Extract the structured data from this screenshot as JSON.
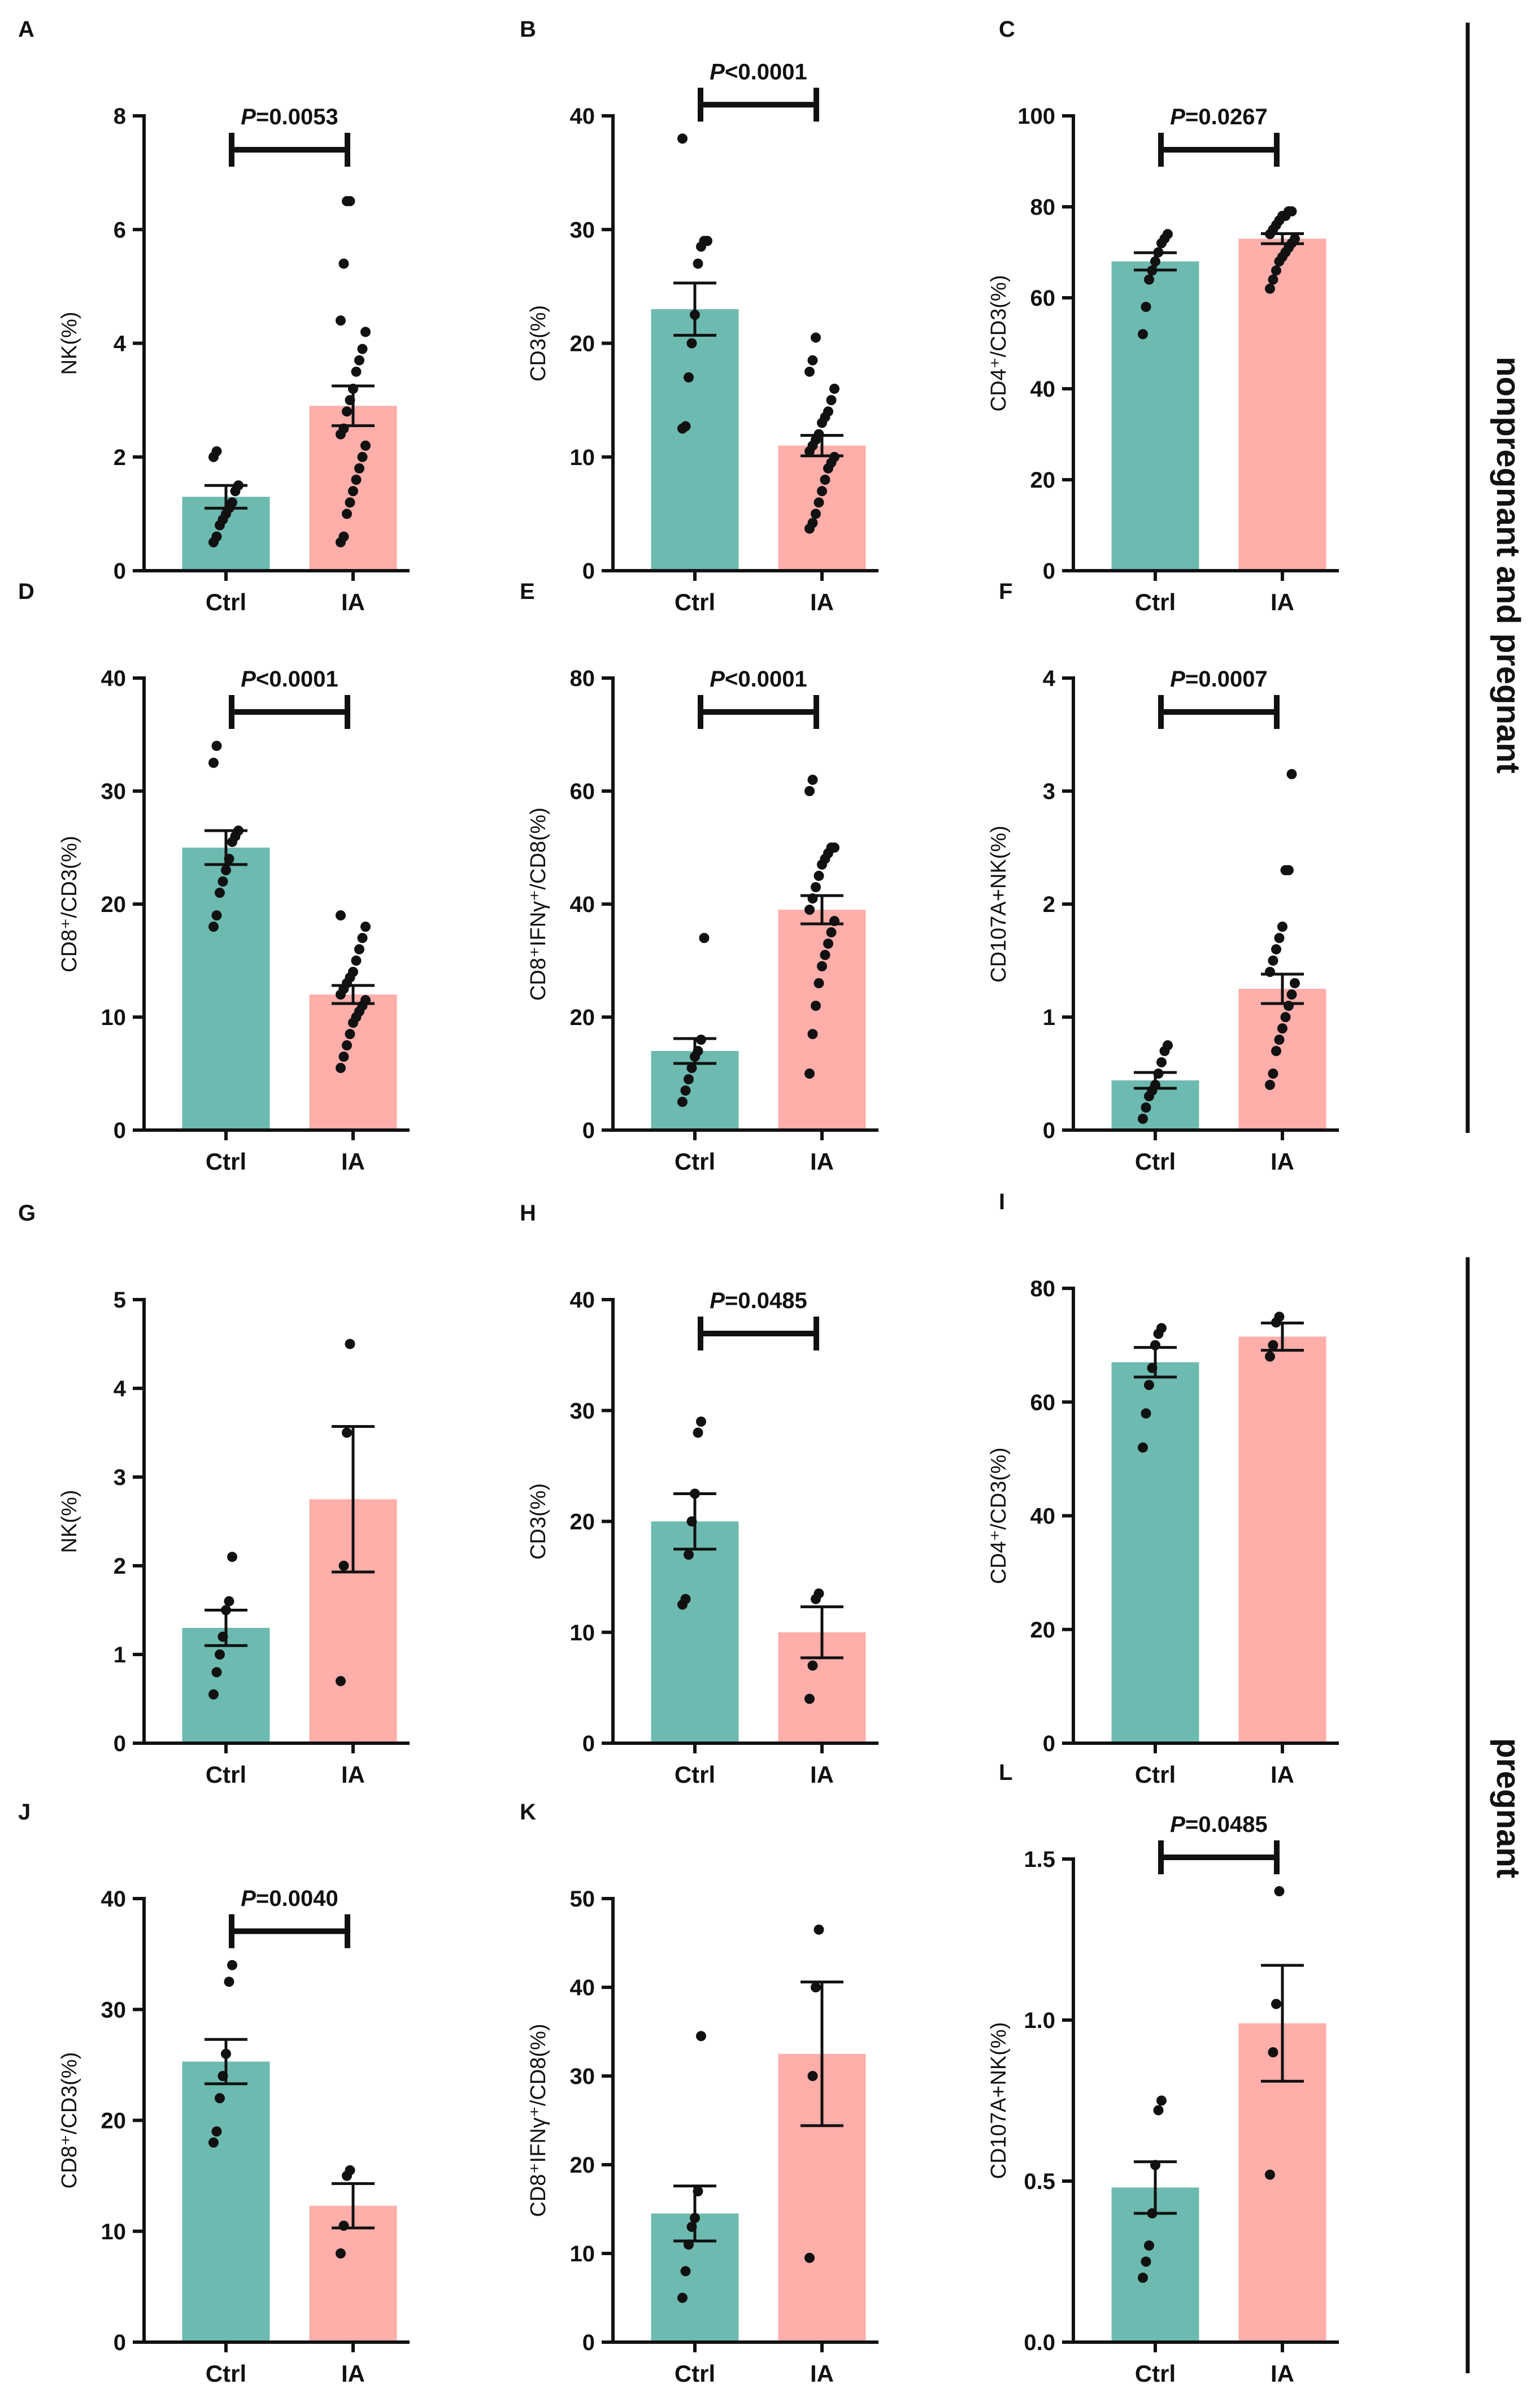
{
  "colors": {
    "ctrl": "#6dbab0",
    "ia": "#ffaeaa",
    "ink": "#111111"
  },
  "group_labels": [
    "nonpregnant and pregnant",
    "pregnant"
  ],
  "chart_data": [
    {
      "panel": "A",
      "type": "bar",
      "ylabel": "NK(%)",
      "ylim": [
        0,
        8
      ],
      "yticks": [
        "0",
        "2",
        "4",
        "6",
        "8"
      ],
      "categories": [
        "Ctrl",
        "IA"
      ],
      "means": [
        1.3,
        2.9
      ],
      "sem": [
        0.2,
        0.35
      ],
      "significance": "P=0.0053",
      "points": [
        [
          0.5,
          0.6,
          0.8,
          0.9,
          1.0,
          1.1,
          1.2,
          1.4,
          1.5,
          2.0,
          2.1
        ],
        [
          0.5,
          0.6,
          1.0,
          1.2,
          1.4,
          1.6,
          1.8,
          2.0,
          2.2,
          2.4,
          2.5,
          2.8,
          3.0,
          3.2,
          3.5,
          3.7,
          3.9,
          4.2,
          4.4,
          5.4,
          6.5,
          6.5
        ]
      ]
    },
    {
      "panel": "B",
      "type": "bar",
      "ylabel": "CD3(%)",
      "ylim": [
        0,
        40
      ],
      "yticks": [
        "0",
        "10",
        "20",
        "30",
        "40"
      ],
      "categories": [
        "Ctrl",
        "IA"
      ],
      "means": [
        23,
        11
      ],
      "sem": [
        2.3,
        0.9
      ],
      "significance": "P<0.0001",
      "points": [
        [
          12.5,
          12.7,
          17,
          20,
          22.5,
          27,
          28.5,
          29,
          29,
          38
        ],
        [
          3.7,
          4.2,
          5,
          6,
          7,
          8,
          9,
          9.5,
          10,
          10.5,
          11,
          11.5,
          12,
          13,
          13.5,
          14,
          15,
          16,
          17.5,
          18.5,
          20.5
        ]
      ]
    },
    {
      "panel": "C",
      "type": "bar",
      "ylabel": "CD4⁺/CD3(%)",
      "ylim": [
        0,
        100
      ],
      "yticks": [
        "0",
        "20",
        "40",
        "60",
        "80",
        "100"
      ],
      "categories": [
        "Ctrl",
        "IA"
      ],
      "means": [
        68,
        73
      ],
      "sem": [
        1.9,
        1.1
      ],
      "significance": "P=0.0267",
      "points": [
        [
          52,
          58,
          64,
          66,
          68,
          70,
          72,
          73,
          74
        ],
        [
          62,
          64,
          66,
          68,
          69,
          70,
          71,
          72,
          73,
          74,
          75,
          76,
          77,
          78,
          78,
          79,
          79
        ]
      ]
    },
    {
      "panel": "D",
      "type": "bar",
      "ylabel": "CD8⁺/CD3(%)",
      "ylim": [
        0,
        40
      ],
      "yticks": [
        "0",
        "10",
        "20",
        "30",
        "40"
      ],
      "categories": [
        "Ctrl",
        "IA"
      ],
      "means": [
        25,
        12
      ],
      "sem": [
        1.5,
        0.8
      ],
      "significance": "P<0.0001",
      "points": [
        [
          18,
          19,
          21,
          22,
          23,
          24,
          25.5,
          26,
          26.5,
          32.5,
          34
        ],
        [
          5.5,
          6.5,
          7.5,
          8.5,
          9.5,
          10,
          10.5,
          11,
          11.5,
          12,
          12.5,
          13,
          13.5,
          14,
          15,
          16,
          17,
          18,
          19
        ]
      ]
    },
    {
      "panel": "E",
      "type": "bar",
      "ylabel": "CD8⁺IFNγ⁺/CD8(%)",
      "ylim": [
        0,
        80
      ],
      "yticks": [
        "0",
        "20",
        "40",
        "60",
        "80"
      ],
      "categories": [
        "Ctrl",
        "IA"
      ],
      "means": [
        14,
        39
      ],
      "sem": [
        2.2,
        2.5
      ],
      "significance": "P<0.0001",
      "points": [
        [
          5,
          7,
          9,
          11,
          13,
          14,
          16,
          34
        ],
        [
          10,
          17,
          22,
          26,
          29,
          31,
          33,
          35,
          37,
          39,
          41,
          43,
          45,
          47,
          48,
          49,
          50,
          50,
          60,
          62
        ]
      ]
    },
    {
      "panel": "F",
      "type": "bar",
      "ylabel": "CD107A+NK(%)",
      "ylim": [
        0,
        4
      ],
      "yticks": [
        "0",
        "1",
        "2",
        "3",
        "4"
      ],
      "categories": [
        "Ctrl",
        "IA"
      ],
      "means": [
        0.44,
        1.25
      ],
      "sem": [
        0.07,
        0.13
      ],
      "significance": "P=0.0007",
      "points": [
        [
          0.1,
          0.2,
          0.3,
          0.35,
          0.4,
          0.5,
          0.6,
          0.7,
          0.75
        ],
        [
          0.4,
          0.5,
          0.7,
          0.8,
          0.9,
          1.0,
          1.1,
          1.2,
          1.3,
          1.4,
          1.5,
          1.6,
          1.7,
          1.8,
          2.3,
          2.3,
          3.15
        ]
      ]
    },
    {
      "panel": "G",
      "type": "bar",
      "ylabel": "NK(%)",
      "ylim": [
        0,
        5
      ],
      "yticks": [
        "0",
        "1",
        "2",
        "3",
        "4",
        "5"
      ],
      "categories": [
        "Ctrl",
        "IA"
      ],
      "means": [
        1.3,
        2.75
      ],
      "sem": [
        0.2,
        0.82
      ],
      "significance": "",
      "points": [
        [
          0.55,
          0.8,
          1.0,
          1.2,
          1.5,
          1.6,
          2.1
        ],
        [
          0.7,
          2.0,
          3.5,
          4.5
        ]
      ]
    },
    {
      "panel": "H",
      "type": "bar",
      "ylabel": "CD3(%)",
      "ylim": [
        0,
        40
      ],
      "yticks": [
        "0",
        "10",
        "20",
        "30",
        "40"
      ],
      "categories": [
        "Ctrl",
        "IA"
      ],
      "means": [
        20,
        10
      ],
      "sem": [
        2.5,
        2.3
      ],
      "significance": "P=0.0485",
      "points": [
        [
          12.5,
          13,
          17,
          20,
          22.5,
          28,
          29
        ],
        [
          4,
          7,
          13,
          13.5
        ]
      ]
    },
    {
      "panel": "I",
      "type": "bar",
      "ylabel": "CD4⁺/CD3(%)",
      "ylim": [
        0,
        80
      ],
      "yticks": [
        "0",
        "20",
        "40",
        "60",
        "80"
      ],
      "categories": [
        "Ctrl",
        "IA"
      ],
      "means": [
        67,
        71.5
      ],
      "sem": [
        2.6,
        2.4
      ],
      "significance": "",
      "points": [
        [
          52,
          58,
          63,
          66,
          70,
          72,
          73
        ],
        [
          68,
          70,
          74,
          75
        ]
      ]
    },
    {
      "panel": "J",
      "type": "bar",
      "ylabel": "CD8⁺/CD3(%)",
      "ylim": [
        0,
        40
      ],
      "yticks": [
        "0",
        "10",
        "20",
        "30",
        "40"
      ],
      "categories": [
        "Ctrl",
        "IA"
      ],
      "means": [
        25.3,
        12.3
      ],
      "sem": [
        2.0,
        2.0
      ],
      "significance": "P=0.0040",
      "points": [
        [
          18,
          19,
          22,
          24,
          26,
          32.5,
          34
        ],
        [
          8,
          10.5,
          15,
          15.5
        ]
      ]
    },
    {
      "panel": "K",
      "type": "bar",
      "ylabel": "CD8⁺IFNγ⁺/CD8(%)",
      "ylim": [
        0,
        50
      ],
      "yticks": [
        "0",
        "10",
        "20",
        "30",
        "40",
        "50"
      ],
      "categories": [
        "Ctrl",
        "IA"
      ],
      "means": [
        14.5,
        32.5
      ],
      "sem": [
        3.1,
        8.1
      ],
      "significance": "",
      "points": [
        [
          5,
          8,
          11,
          13,
          14,
          17,
          34.5
        ],
        [
          9.5,
          30,
          40,
          46.5
        ]
      ]
    },
    {
      "panel": "L",
      "type": "bar",
      "ylabel": "CD107A+NK(%)",
      "ylim": [
        0,
        1.5
      ],
      "yticks": [
        "0.0",
        "0.5",
        "1.0",
        "1.5"
      ],
      "categories": [
        "Ctrl",
        "IA"
      ],
      "means": [
        0.48,
        0.99
      ],
      "sem": [
        0.08,
        0.18
      ],
      "significance": "P=0.0485",
      "points": [
        [
          0.2,
          0.25,
          0.3,
          0.4,
          0.55,
          0.72,
          0.75
        ],
        [
          0.52,
          0.9,
          1.05,
          1.4
        ]
      ]
    }
  ]
}
